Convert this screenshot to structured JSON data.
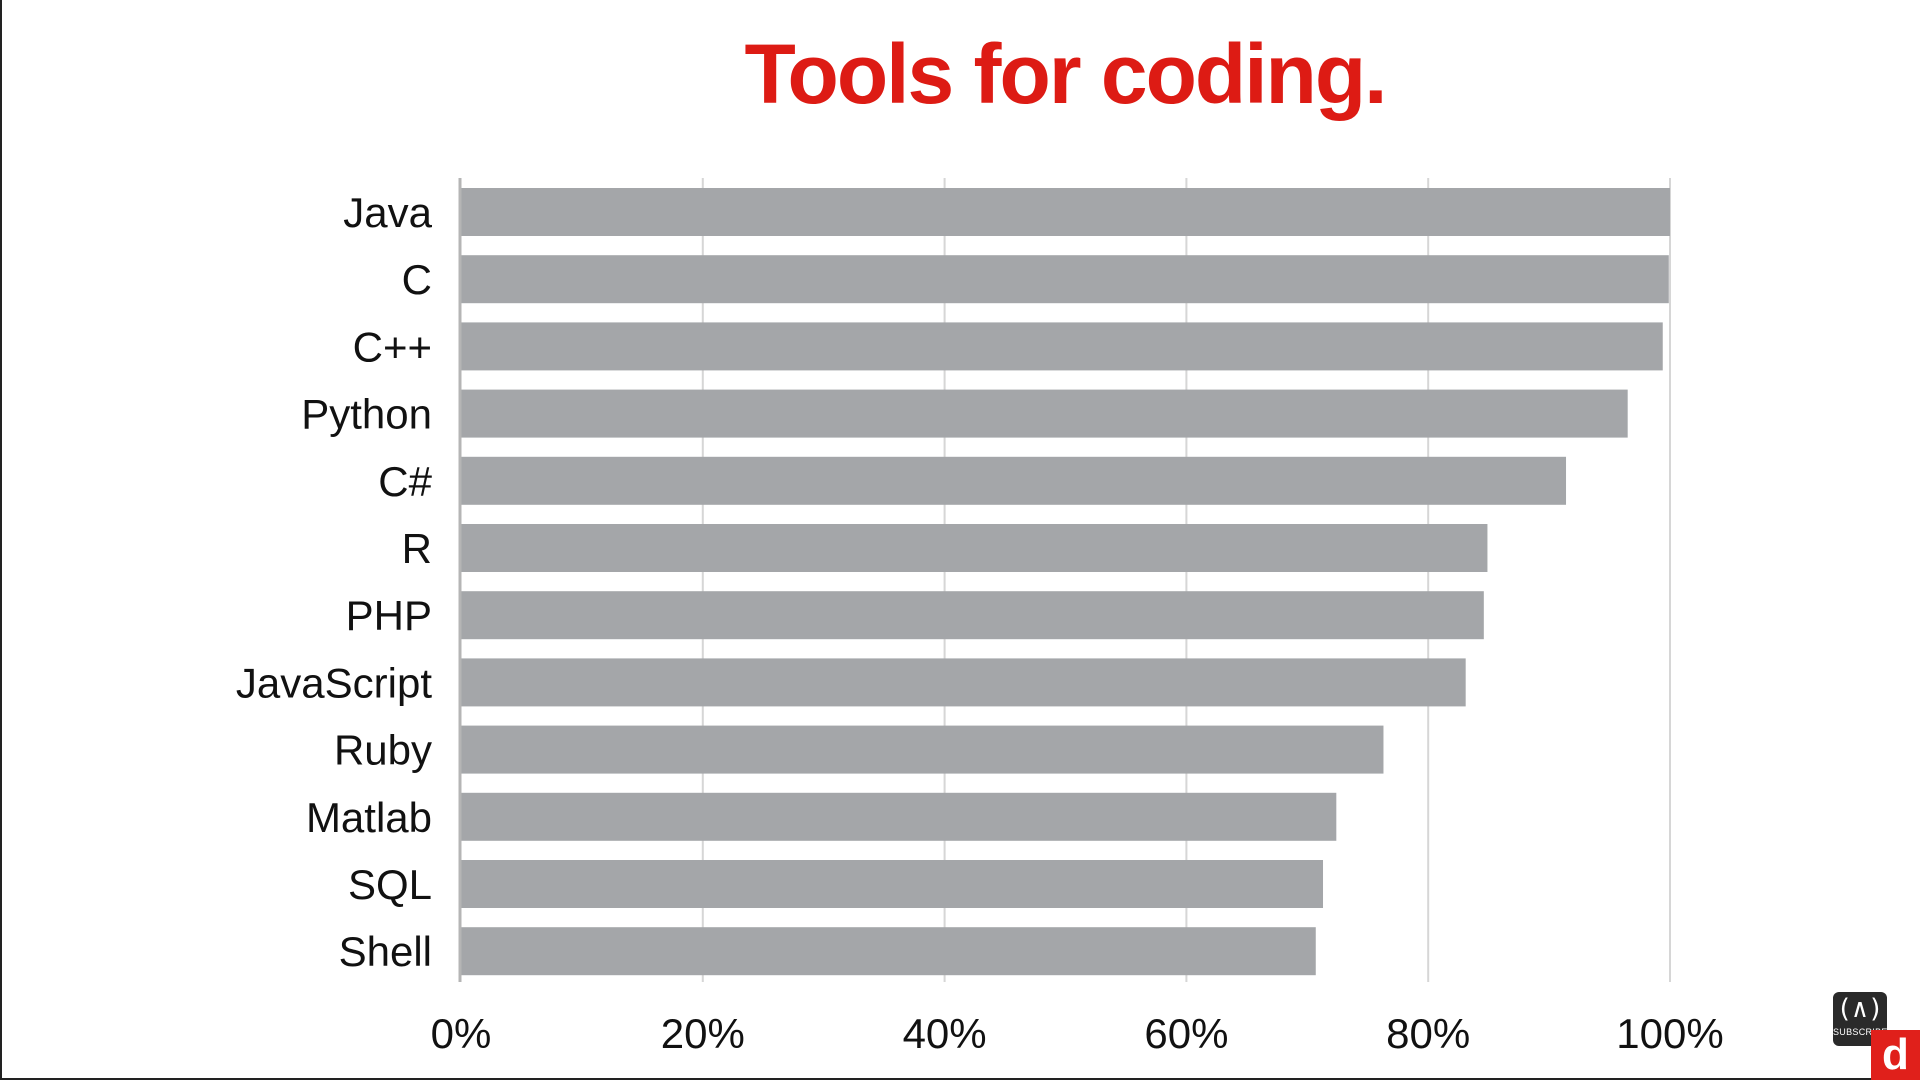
{
  "chart_data": {
    "type": "bar",
    "orientation": "horizontal",
    "title": "Tools for coding.",
    "title_color": "#dd1b14",
    "bar_color": "#a4a6a9",
    "categories": [
      "Java",
      "C",
      "C++",
      "Python",
      "C#",
      "R",
      "PHP",
      "JavaScript",
      "Ruby",
      "Matlab",
      "SQL",
      "Shell"
    ],
    "values": [
      100,
      99.9,
      99.4,
      96.5,
      91.4,
      84.9,
      84.6,
      83.1,
      76.3,
      72.4,
      71.3,
      70.7
    ],
    "xlim": [
      0,
      100
    ],
    "x_ticks": [
      "0%",
      "20%",
      "40%",
      "60%",
      "80%",
      "100%"
    ],
    "xlabel": "",
    "ylabel": "",
    "grid": "vertical"
  },
  "overlay": {
    "subscribe_label": "SUBSCRIBE",
    "subscribe_icon": "(∧)",
    "logo_letter": "d"
  }
}
